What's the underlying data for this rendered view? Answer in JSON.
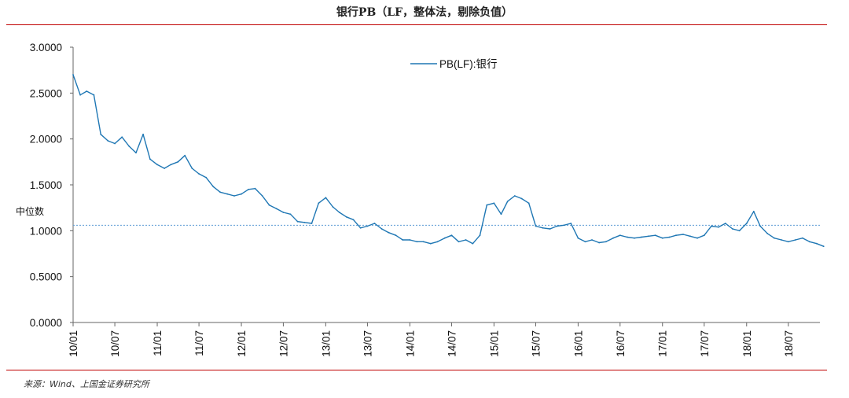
{
  "title": "银行PB（LF，整体法，剔除负值）",
  "source": "来源：Wind、上国金证券研究所",
  "colors": {
    "series": "#1f77b4",
    "median": "#5b9bd5",
    "rule": "#c00000"
  },
  "chart_data": {
    "type": "line",
    "title": "银行PB（LF，整体法，剔除负值）",
    "xlabel": "",
    "ylabel": "",
    "ylim": [
      0,
      3
    ],
    "y_ticks": [
      "0.0000",
      "0.5000",
      "1.0000",
      "1.5000",
      "2.0000",
      "2.5000",
      "3.0000"
    ],
    "x_ticks": [
      "10/01",
      "10/07",
      "11/01",
      "11/07",
      "12/01",
      "12/07",
      "13/01",
      "13/07",
      "14/01",
      "14/07",
      "15/01",
      "15/07",
      "16/01",
      "16/07",
      "17/01",
      "17/07",
      "18/01",
      "18/07"
    ],
    "legend": {
      "position": "top-center"
    },
    "grid": false,
    "median": {
      "label": "中位数",
      "value": 1.06
    },
    "series": [
      {
        "name": "PB(LF):银行",
        "x": [
          "2010-01",
          "2010-02",
          "2010-03",
          "2010-04",
          "2010-05",
          "2010-06",
          "2010-07",
          "2010-08",
          "2010-09",
          "2010-10",
          "2010-11",
          "2010-12",
          "2011-01",
          "2011-02",
          "2011-03",
          "2011-04",
          "2011-05",
          "2011-06",
          "2011-07",
          "2011-08",
          "2011-09",
          "2011-10",
          "2011-11",
          "2011-12",
          "2012-01",
          "2012-02",
          "2012-03",
          "2012-04",
          "2012-05",
          "2012-06",
          "2012-07",
          "2012-08",
          "2012-09",
          "2012-10",
          "2012-11",
          "2012-12",
          "2013-01",
          "2013-02",
          "2013-03",
          "2013-04",
          "2013-05",
          "2013-06",
          "2013-07",
          "2013-08",
          "2013-09",
          "2013-10",
          "2013-11",
          "2013-12",
          "2014-01",
          "2014-02",
          "2014-03",
          "2014-04",
          "2014-05",
          "2014-06",
          "2014-07",
          "2014-08",
          "2014-09",
          "2014-10",
          "2014-11",
          "2014-12",
          "2015-01",
          "2015-02",
          "2015-03",
          "2015-04",
          "2015-05",
          "2015-06",
          "2015-07",
          "2015-08",
          "2015-09",
          "2015-10",
          "2015-11",
          "2015-12",
          "2016-01",
          "2016-02",
          "2016-03",
          "2016-04",
          "2016-05",
          "2016-06",
          "2016-07",
          "2016-08",
          "2016-09",
          "2016-10",
          "2016-11",
          "2016-12",
          "2017-01",
          "2017-02",
          "2017-03",
          "2017-04",
          "2017-05",
          "2017-06",
          "2017-07",
          "2017-08",
          "2017-09",
          "2017-10",
          "2017-11",
          "2017-12",
          "2018-01",
          "2018-02",
          "2018-03",
          "2018-04",
          "2018-05",
          "2018-06",
          "2018-07",
          "2018-08",
          "2018-09",
          "2018-10",
          "2018-11",
          "2018-12"
        ],
        "values": [
          2.7,
          2.48,
          2.52,
          2.48,
          2.05,
          1.98,
          1.95,
          2.02,
          1.92,
          1.85,
          2.05,
          1.78,
          1.72,
          1.68,
          1.72,
          1.75,
          1.82,
          1.68,
          1.62,
          1.58,
          1.48,
          1.42,
          1.4,
          1.38,
          1.4,
          1.45,
          1.46,
          1.38,
          1.28,
          1.24,
          1.2,
          1.18,
          1.1,
          1.09,
          1.08,
          1.3,
          1.36,
          1.26,
          1.2,
          1.15,
          1.12,
          1.03,
          1.05,
          1.08,
          1.02,
          0.98,
          0.95,
          0.9,
          0.9,
          0.88,
          0.88,
          0.86,
          0.88,
          0.92,
          0.95,
          0.88,
          0.9,
          0.86,
          0.95,
          1.28,
          1.3,
          1.18,
          1.32,
          1.38,
          1.35,
          1.3,
          1.05,
          1.03,
          1.02,
          1.05,
          1.06,
          1.08,
          0.92,
          0.88,
          0.9,
          0.87,
          0.88,
          0.92,
          0.95,
          0.93,
          0.92,
          0.93,
          0.94,
          0.95,
          0.92,
          0.93,
          0.95,
          0.96,
          0.94,
          0.92,
          0.95,
          1.05,
          1.04,
          1.08,
          1.02,
          1.0,
          1.08,
          1.21,
          1.05,
          0.97,
          0.92,
          0.9,
          0.88,
          0.9,
          0.92,
          0.88,
          0.86,
          0.83
        ]
      }
    ]
  }
}
